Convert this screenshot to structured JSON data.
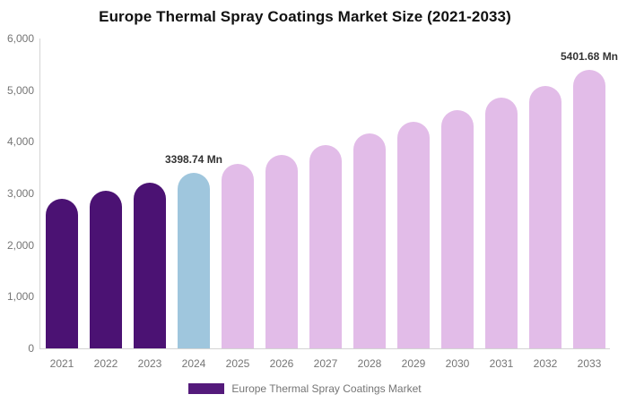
{
  "title": "Europe Thermal Spray Coatings Market Size (2021-2033)",
  "legend": {
    "label": "Europe Thermal Spray Coatings Market",
    "swatch_color": "#541A7B"
  },
  "colors": {
    "historical_bar": "#4B1273",
    "base_year_bar": "#9FC6DD",
    "forecast_bar": "#E2BCE8",
    "axis_line": "#d4d4d4",
    "tick_text": "#757575",
    "annotation_text": "#333333",
    "title_text": "#111111"
  },
  "chart_data": {
    "type": "bar",
    "title": "Europe Thermal Spray Coatings Market Size (2021-2033)",
    "categories": [
      "2021",
      "2022",
      "2023",
      "2024",
      "2025",
      "2026",
      "2027",
      "2028",
      "2029",
      "2030",
      "2031",
      "2032",
      "2033"
    ],
    "values": [
      2890,
      3050,
      3200,
      3398.74,
      3570,
      3740,
      3930,
      4160,
      4390,
      4610,
      4860,
      5080,
      5401.68
    ],
    "unit": "Mn",
    "bar_colors": [
      "#4B1273",
      "#4B1273",
      "#4B1273",
      "#9FC6DD",
      "#E2BCE8",
      "#E2BCE8",
      "#E2BCE8",
      "#E2BCE8",
      "#E2BCE8",
      "#E2BCE8",
      "#E2BCE8",
      "#E2BCE8",
      "#E2BCE8"
    ],
    "annotations": [
      {
        "index": 3,
        "text": "3398.74 Mn"
      },
      {
        "index": 12,
        "text": "5401.68 Mn"
      }
    ],
    "xlabel": "",
    "ylabel": "",
    "ylim": [
      0,
      6000
    ],
    "ytick_values": [
      0,
      1000,
      2000,
      3000,
      4000,
      5000,
      6000
    ],
    "ytick_labels": [
      "0",
      "1,000",
      "2,000",
      "3,000",
      "4,000",
      "5,000",
      "6,000"
    ],
    "grid": false,
    "legend_position": "bottom",
    "legend_entries": [
      "Europe Thermal Spray Coatings Market"
    ]
  }
}
